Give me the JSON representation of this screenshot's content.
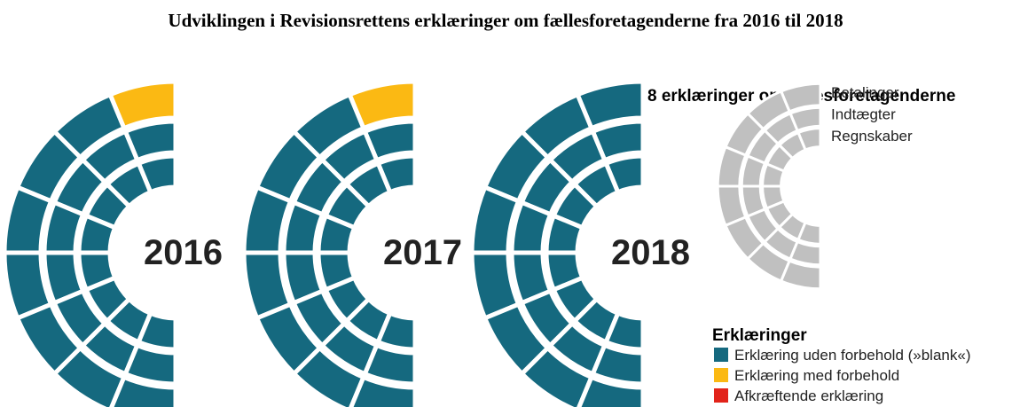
{
  "title": "Udviklingen i Revisionsrettens erklæringer om fællesforetagenderne fra 2016 til 2018",
  "panels": [
    {
      "year": "2016",
      "rings": [
        {
          "segments": [
            "#fbb913",
            "#15697f",
            "#15697f",
            "#15697f",
            "#15697f",
            "#15697f",
            "#15697f",
            "#15697f"
          ]
        },
        {
          "segments": [
            "#15697f",
            "#15697f",
            "#15697f",
            "#15697f",
            "#15697f",
            "#15697f",
            "#15697f",
            "#15697f"
          ]
        },
        {
          "segments": [
            "#15697f",
            "#15697f",
            "#15697f",
            "#15697f",
            "#15697f",
            "#15697f",
            "#15697f",
            "#15697f"
          ]
        }
      ]
    },
    {
      "year": "2017",
      "rings": [
        {
          "segments": [
            "#fbb913",
            "#15697f",
            "#15697f",
            "#15697f",
            "#15697f",
            "#15697f",
            "#15697f",
            "#15697f"
          ]
        },
        {
          "segments": [
            "#15697f",
            "#15697f",
            "#15697f",
            "#15697f",
            "#15697f",
            "#15697f",
            "#15697f",
            "#15697f"
          ]
        },
        {
          "segments": [
            "#15697f",
            "#15697f",
            "#15697f",
            "#15697f",
            "#15697f",
            "#15697f",
            "#15697f",
            "#15697f"
          ]
        }
      ]
    },
    {
      "year": "2018",
      "rings": [
        {
          "segments": [
            "#15697f",
            "#15697f",
            "#15697f",
            "#15697f",
            "#15697f",
            "#15697f",
            "#15697f",
            "#15697f"
          ]
        },
        {
          "segments": [
            "#15697f",
            "#15697f",
            "#15697f",
            "#15697f",
            "#15697f",
            "#15697f",
            "#15697f",
            "#15697f"
          ]
        },
        {
          "segments": [
            "#15697f",
            "#15697f",
            "#15697f",
            "#15697f",
            "#15697f",
            "#15697f",
            "#15697f",
            "#15697f"
          ]
        }
      ]
    }
  ],
  "key": {
    "title": "8 erklæringer omfællesforetagenderne",
    "color": "#c0c0c0",
    "rings": [
      "Betalinger",
      "Indtægter",
      "Regnskaber"
    ]
  },
  "legend": {
    "title": "Erklæringer",
    "items": [
      {
        "label": "Erklæring uden forbehold (»blank«)",
        "color": "#15697f"
      },
      {
        "label": "Erklæring med forbehold",
        "color": "#fbb913"
      },
      {
        "label": "Afkræftende erklæring",
        "color": "#e2231a"
      }
    ]
  }
}
